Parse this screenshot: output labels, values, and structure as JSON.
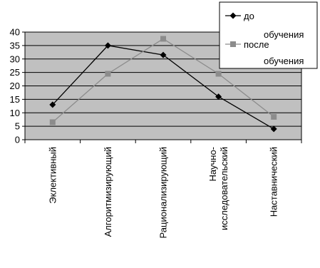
{
  "chart_data": {
    "type": "line",
    "categories": [
      [
        "Эклективный"
      ],
      [
        "Алгоритмизирующий"
      ],
      [
        "Рационализирующий"
      ],
      [
        "Научно-",
        "исследовательский"
      ],
      [
        "Наставнический"
      ]
    ],
    "series": [
      {
        "name": "до обучения",
        "values": [
          13,
          35,
          31.5,
          16,
          4
        ],
        "color": "#000000",
        "marker": "diamond"
      },
      {
        "name": "после обучения",
        "values": [
          6.5,
          24.5,
          37.5,
          24.5,
          8.5
        ],
        "color": "#8c8c8c",
        "marker": "square"
      }
    ],
    "legend_lines": [
      [
        "до",
        "обучения"
      ],
      [
        "после",
        "обучения"
      ]
    ],
    "ylim": [
      0,
      40
    ],
    "yticks": [
      0,
      5,
      10,
      15,
      20,
      25,
      30,
      35,
      40
    ],
    "grid": true,
    "plot_background": "#c0c0c0",
    "legend_position": "top-right"
  }
}
